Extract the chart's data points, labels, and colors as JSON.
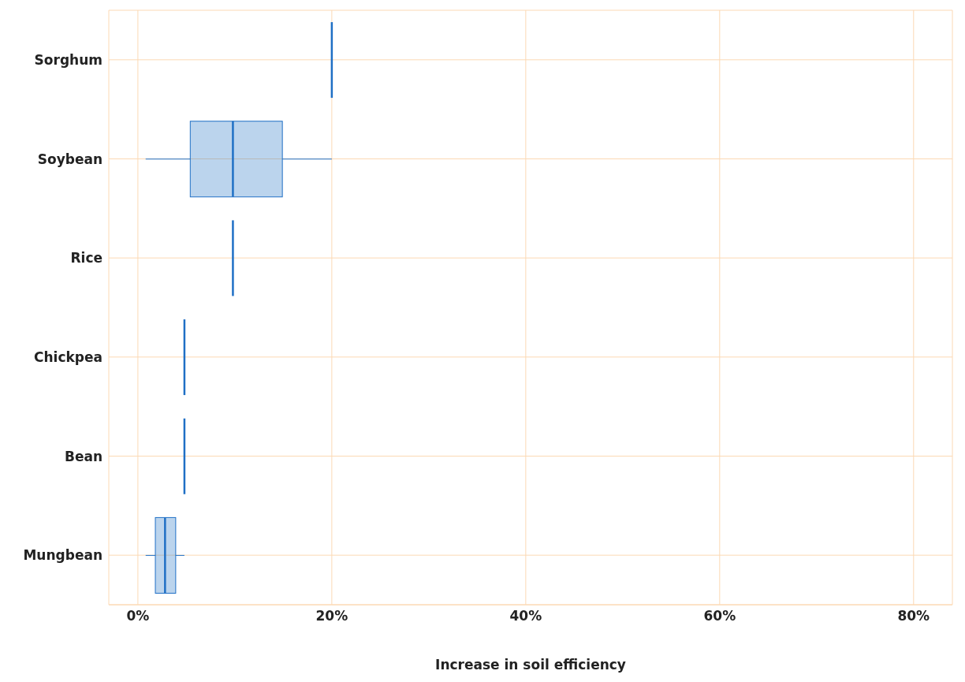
{
  "chart_data": {
    "type": "box",
    "orientation": "horizontal",
    "xlabel": "Increase in soil efficiency",
    "categories": [
      "Sorghum",
      "Soybean",
      "Rice",
      "Chickpea",
      "Bean",
      "Mungbean"
    ],
    "boxes": [
      {
        "low": 20,
        "q1": 20,
        "median": 20,
        "q3": 20,
        "high": 20
      },
      {
        "low": 0.8,
        "q1": 5.4,
        "median": 9.8,
        "q3": 14.9,
        "high": 20
      },
      {
        "low": 9.8,
        "q1": 9.8,
        "median": 9.8,
        "q3": 9.8,
        "high": 9.8
      },
      {
        "low": 4.8,
        "q1": 4.8,
        "median": 4.8,
        "q3": 4.8,
        "high": 4.8
      },
      {
        "low": 4.8,
        "q1": 4.8,
        "median": 4.8,
        "q3": 4.8,
        "high": 4.8
      },
      {
        "low": 0.8,
        "q1": 1.8,
        "median": 2.8,
        "q3": 3.9,
        "high": 4.8
      }
    ],
    "color": "#1f6fc5",
    "xlim": [
      -3,
      84
    ],
    "xticks": [
      {
        "value": 0,
        "label": "0%"
      },
      {
        "value": 20,
        "label": "20%"
      },
      {
        "value": 40,
        "label": "40%"
      },
      {
        "value": 60,
        "label": "60%"
      },
      {
        "value": 80,
        "label": "80%"
      }
    ],
    "grid": true
  }
}
